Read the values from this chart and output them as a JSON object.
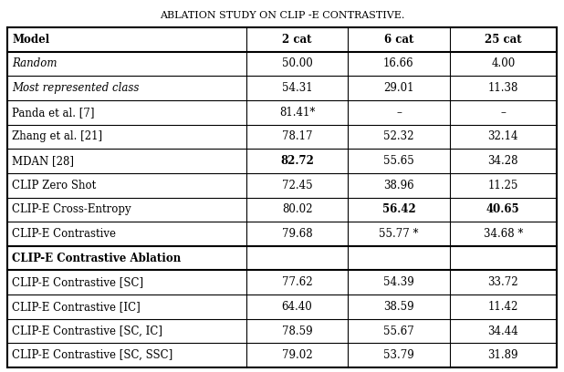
{
  "title": "Ablation Study on Clip -E Contrastive.",
  "columns": [
    "Model",
    "2 cat",
    "6 cat",
    "25 cat"
  ],
  "rows": [
    {
      "model": "Random",
      "cat2": "50.00",
      "cat6": "16.66",
      "cat25": "4.00",
      "italic": true,
      "bold_cols": []
    },
    {
      "model": "Most represented class",
      "cat2": "54.31",
      "cat6": "29.01",
      "cat25": "11.38",
      "italic": true,
      "bold_cols": []
    },
    {
      "model": "Panda et al. [7]",
      "cat2": "81.41*",
      "cat6": "–",
      "cat25": "–",
      "italic": false,
      "bold_cols": []
    },
    {
      "model": "Zhang et al. [21]",
      "cat2": "78.17",
      "cat6": "52.32",
      "cat25": "32.14",
      "italic": false,
      "bold_cols": []
    },
    {
      "model": "MDAN [28]",
      "cat2": "82.72",
      "cat6": "55.65",
      "cat25": "34.28",
      "italic": false,
      "bold_cols": [
        "cat2"
      ]
    },
    {
      "model": "CLIP Zero Shot",
      "cat2": "72.45",
      "cat6": "38.96",
      "cat25": "11.25",
      "italic": false,
      "bold_cols": []
    },
    {
      "model": "CLIP-E Cross-Entropy",
      "cat2": "80.02",
      "cat6": "56.42",
      "cat25": "40.65",
      "italic": false,
      "bold_cols": [
        "cat6",
        "cat25"
      ]
    },
    {
      "model": "CLIP-E Contrastive",
      "cat2": "79.68",
      "cat6": "55.77 *",
      "cat25": "34.68 *",
      "italic": false,
      "bold_cols": []
    }
  ],
  "ablation_header": "CLIP-E Contrastive Ablation",
  "ablation_rows": [
    {
      "model": "CLIP-E Contrastive [SC]",
      "cat2": "77.62",
      "cat6": "54.39",
      "cat25": "33.72"
    },
    {
      "model": "CLIP-E Contrastive [IC]",
      "cat2": "64.40",
      "cat6": "38.59",
      "cat25": "11.42"
    },
    {
      "model": "CLIP-E Contrastive [SC, IC]",
      "cat2": "78.59",
      "cat6": "55.67",
      "cat25": "34.44"
    },
    {
      "model": "CLIP-E Contrastive [SC, SSC]",
      "cat2": "79.02",
      "cat6": "53.79",
      "cat25": "31.89"
    }
  ],
  "line_color": "#000000",
  "text_color": "#000000",
  "font_size": 8.5,
  "title_font_size": 8.0
}
